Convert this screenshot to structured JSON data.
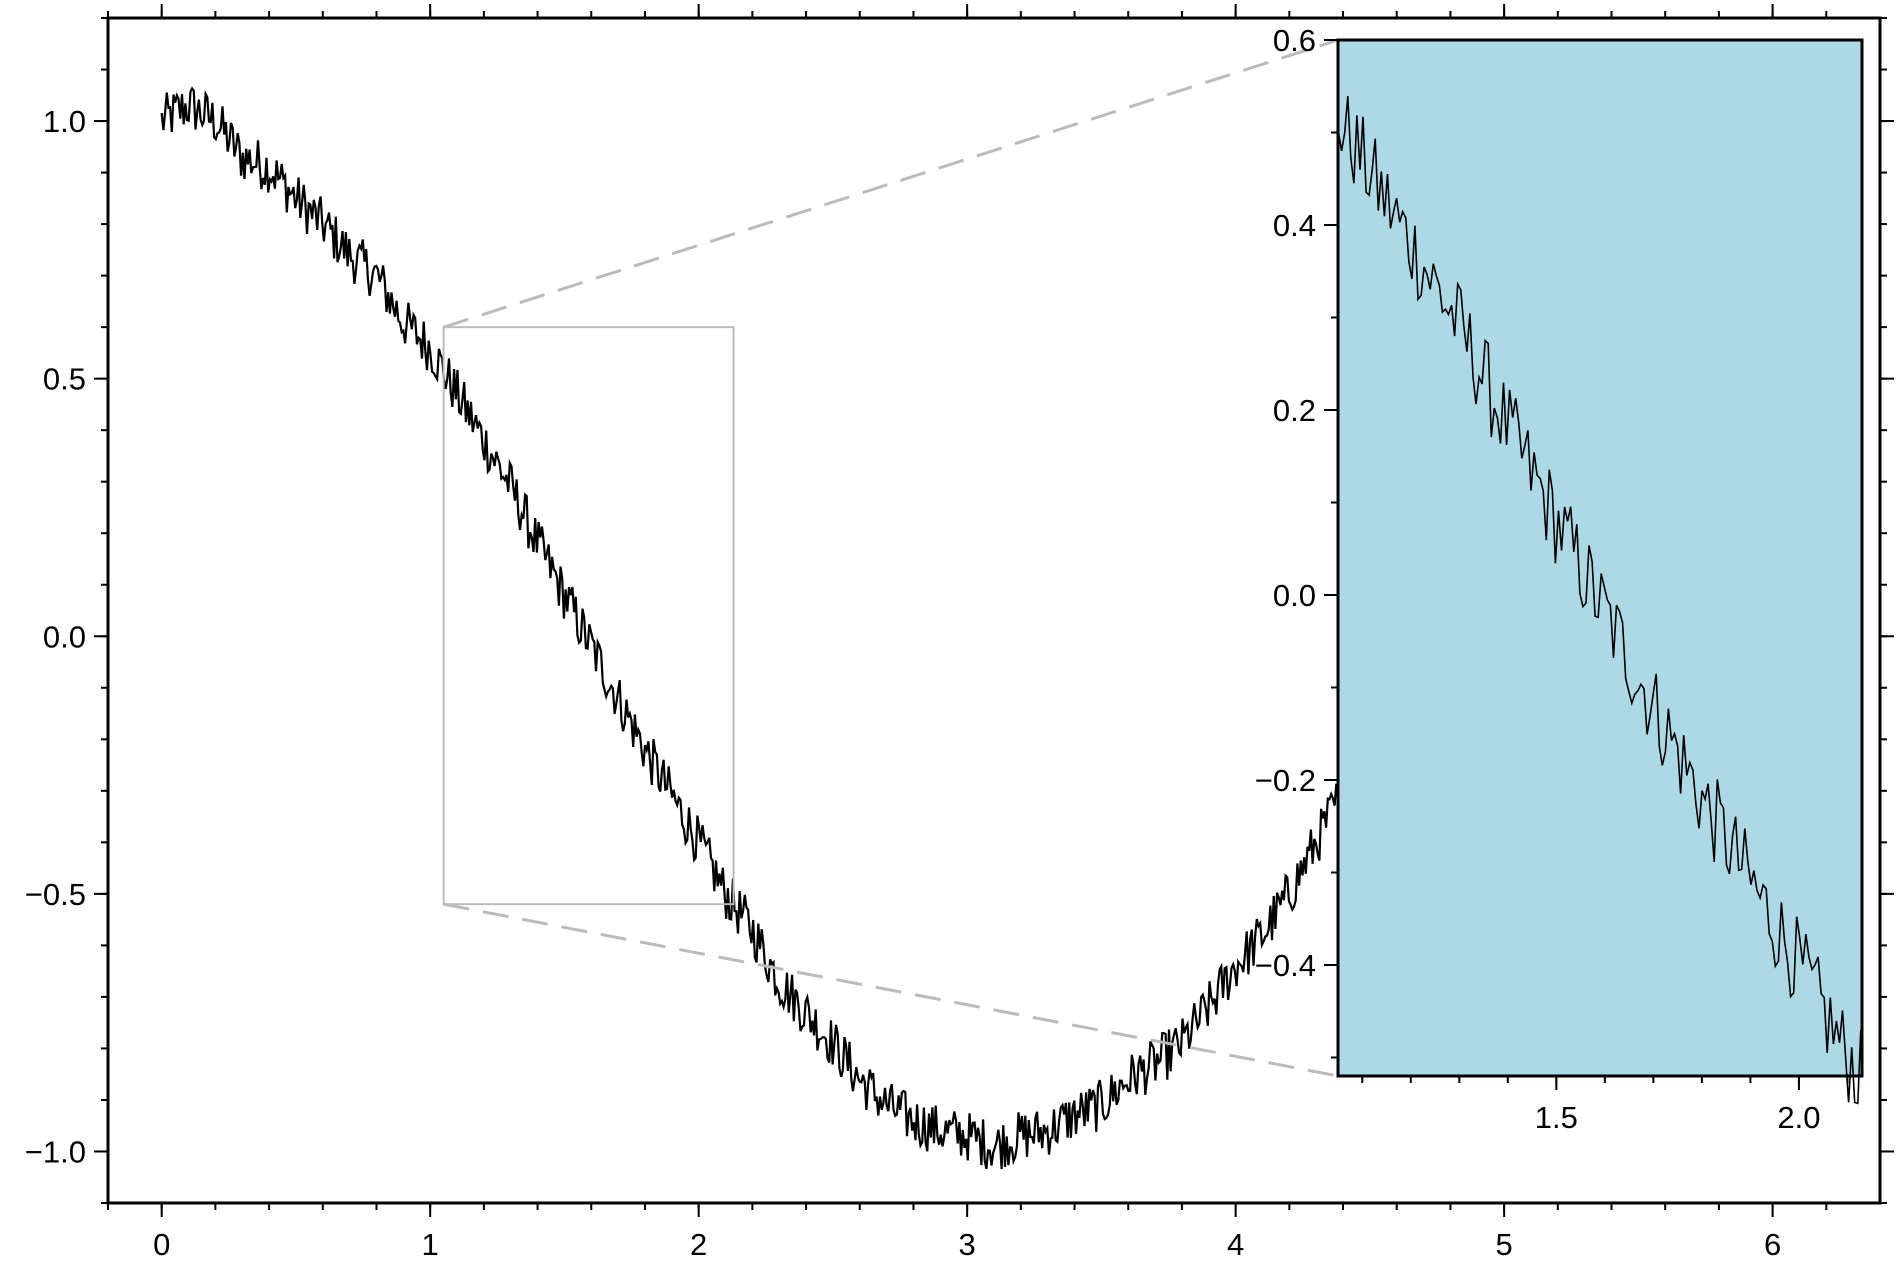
{
  "chart_data": [
    {
      "type": "line",
      "title": "",
      "xlabel": "",
      "ylabel": "",
      "xlim": [
        -0.2,
        6.4
      ],
      "ylim": [
        -1.1,
        1.2
      ],
      "x_ticks": [
        0,
        1,
        2,
        3,
        4,
        5,
        6
      ],
      "x_tick_labels": [
        "0",
        "1",
        "2",
        "3",
        "4",
        "5",
        "6"
      ],
      "y_ticks": [
        -1.0,
        -0.5,
        0.0,
        0.5,
        1.0
      ],
      "y_tick_labels": [
        "−1.0",
        "−0.5",
        "0.0",
        "0.5",
        "1.0"
      ],
      "grid": false,
      "series": [
        {
          "function": "cos(x) + noise",
          "x": [
            0.0,
            0.1,
            0.2,
            0.3,
            0.4,
            0.5,
            0.6,
            0.7,
            0.8,
            0.9,
            1.0,
            1.1,
            1.2,
            1.3,
            1.4,
            1.5,
            1.6,
            1.7,
            1.8,
            1.9,
            2.0,
            2.1,
            2.2,
            2.3,
            2.4,
            2.5,
            2.6,
            2.7,
            2.8,
            2.9,
            3.0,
            3.1,
            3.2,
            3.3,
            3.4,
            3.5,
            3.6,
            3.7,
            3.8,
            3.9,
            4.0,
            4.1,
            4.2,
            4.3,
            4.4
          ],
          "y": [
            1.0,
            1.03,
            1.0,
            0.93,
            0.91,
            0.85,
            0.8,
            0.74,
            0.7,
            0.61,
            0.56,
            0.47,
            0.38,
            0.29,
            0.18,
            0.08,
            -0.02,
            -0.12,
            -0.22,
            -0.31,
            -0.4,
            -0.5,
            -0.57,
            -0.67,
            -0.73,
            -0.79,
            -0.86,
            -0.91,
            -0.94,
            -0.96,
            -0.97,
            -0.99,
            -0.97,
            -0.96,
            -0.93,
            -0.91,
            -0.86,
            -0.83,
            -0.79,
            -0.72,
            -0.64,
            -0.58,
            -0.5,
            -0.4,
            -0.3
          ],
          "noise_amplitude": 0.05,
          "color": "#000000"
        }
      ],
      "zoom_box": {
        "xlim": [
          1.05,
          2.13
        ],
        "ylim": [
          -0.52,
          0.6
        ],
        "color": "#bbbbbb"
      }
    },
    {
      "type": "line",
      "role": "inset",
      "title": "",
      "xlabel": "",
      "ylabel": "",
      "background": "#add8e6",
      "xlim": [
        1.05,
        2.13
      ],
      "ylim": [
        -0.52,
        0.6
      ],
      "x_ticks": [
        1.5,
        2.0
      ],
      "x_tick_labels": [
        "1.5",
        "2.0"
      ],
      "y_ticks": [
        -0.4,
        -0.2,
        0.0,
        0.2,
        0.4,
        0.6
      ],
      "y_tick_labels": [
        "−0.4",
        "−0.2",
        "0.0",
        "0.2",
        "0.4",
        "0.6"
      ],
      "grid": false,
      "series": [
        {
          "function": "cos(x) + noise",
          "x": [
            1.05,
            1.1,
            1.2,
            1.3,
            1.4,
            1.5,
            1.6,
            1.7,
            1.8,
            1.9,
            2.0,
            2.1,
            2.13
          ],
          "y": [
            0.5,
            0.5,
            0.4,
            0.3,
            0.2,
            0.09,
            -0.01,
            -0.12,
            -0.22,
            -0.31,
            -0.4,
            -0.46,
            -0.47
          ],
          "noise_amplitude": 0.05,
          "color": "#000000"
        }
      ]
    }
  ]
}
